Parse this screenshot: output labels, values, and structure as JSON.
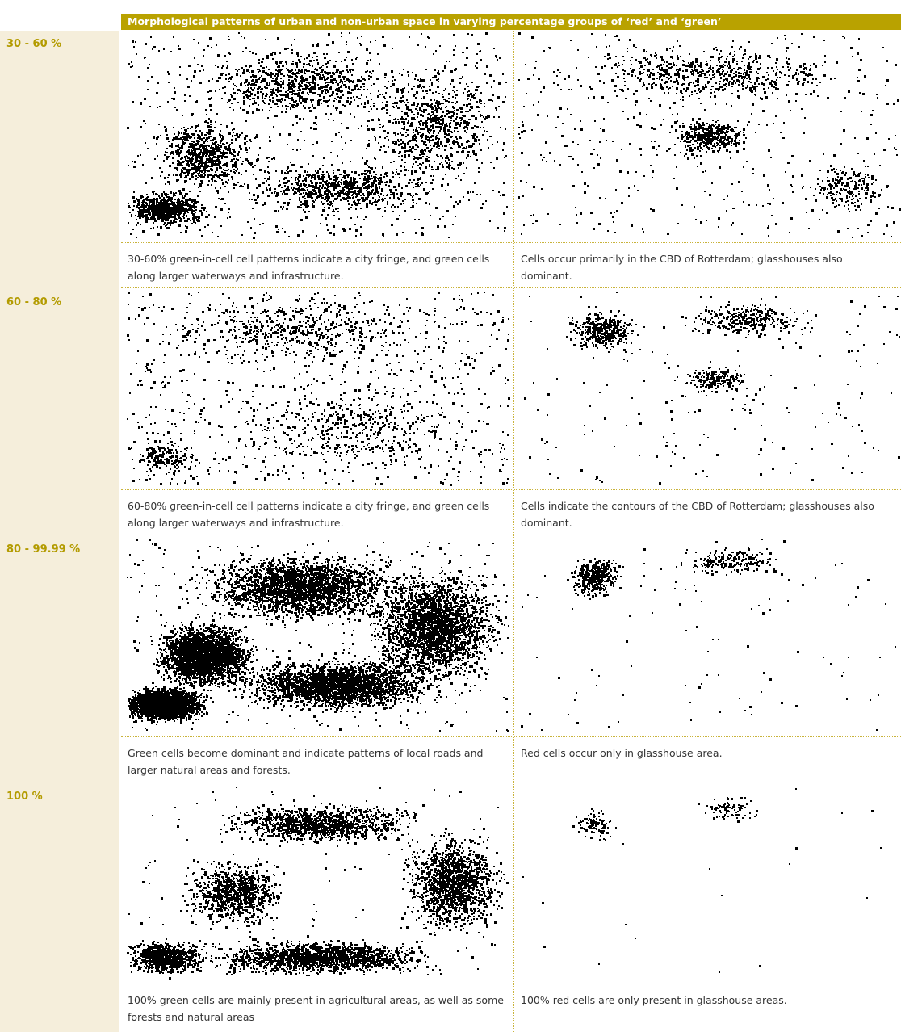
{
  "header": {
    "title": "Morphological patterns of urban and non-urban space in varying percentage groups of ‘red’ and ‘green’"
  },
  "rows": [
    {
      "label": "30 - 60 %",
      "captions": [
        "30-60% green-in-cell cell patterns indicate a city fringe, and green cells along larger waterways and infrastructure.",
        "Cells occur primarily in the CBD of Rotterdam; glasshouses also dominant."
      ]
    },
    {
      "label": "60 - 80 %",
      "captions": [
        "60-80% green-in-cell cell patterns indicate a city fringe, and green cells along larger waterways and infrastructure.",
        "Cells indicate the contours of the CBD of Rotterdam; glasshouses also dominant."
      ]
    },
    {
      "label": "80 - 99.99 %",
      "captions": [
        "Green cells become dominant and indicate patterns of local roads and larger natural areas and forests.",
        "Red cells occur only in glasshouse area."
      ]
    },
    {
      "label": "100 %",
      "captions": [
        "100% green cells are mainly present in agricultural areas, as well as some forests and natural areas",
        "100% red cells are only present in glasshouse areas."
      ]
    }
  ]
}
